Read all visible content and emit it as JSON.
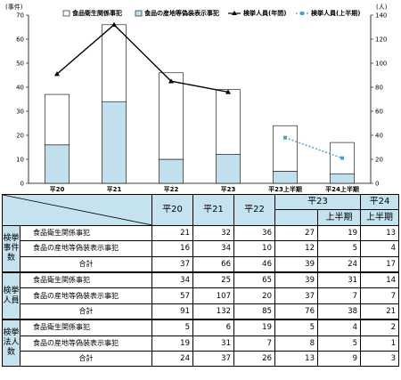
{
  "chart_data": {
    "type": "bar",
    "left_axis_unit": "(事件)",
    "right_axis_unit": "(人)",
    "y_left_ticks": [
      "0",
      "10",
      "20",
      "30",
      "40",
      "50",
      "60",
      "70"
    ],
    "y_right_ticks": [
      "0",
      "20",
      "40",
      "60",
      "80",
      "100",
      "120",
      "140"
    ],
    "ylim_left": [
      0,
      70
    ],
    "ylim_right": [
      0,
      140
    ],
    "categories": [
      "平20",
      "平21",
      "平22",
      "平23",
      "平23上半期",
      "平24上半期"
    ],
    "series": [
      {
        "name": "食品衛生関係事犯",
        "kind": "bar-stack-top",
        "color": "#ffffff",
        "values": [
          21,
          32,
          36,
          27,
          19,
          13
        ]
      },
      {
        "name": "食品の産地等偽装表示事犯",
        "kind": "bar-stack-bottom",
        "color": "#bfe0ec",
        "values": [
          16,
          34,
          10,
          12,
          5,
          4
        ]
      },
      {
        "name": "検挙人員(年間)",
        "kind": "line",
        "axis": "right",
        "color": "#000000",
        "values": [
          91,
          132,
          85,
          76,
          null,
          null
        ]
      },
      {
        "name": "検挙人員(上半期)",
        "kind": "line-dashed",
        "axis": "right",
        "color": "#4aa3c8",
        "values": [
          null,
          null,
          null,
          null,
          38,
          21
        ]
      }
    ],
    "legend_position": "top"
  },
  "table": {
    "headers": {
      "h20": "平20",
      "h21": "平21",
      "h22": "平22",
      "h23": "平23",
      "h23h": "上半期",
      "h24": "平24",
      "h24h": "上半期"
    },
    "groups": [
      {
        "label": "検挙事件数",
        "rows": [
          {
            "label": "食品衛生関係事犯",
            "values": [
              "21",
              "32",
              "36",
              "27",
              "19",
              "13"
            ]
          },
          {
            "label": "食品の産地等偽装表示事犯",
            "values": [
              "16",
              "34",
              "10",
              "12",
              "5",
              "4"
            ]
          },
          {
            "label": "合計",
            "values": [
              "37",
              "66",
              "46",
              "39",
              "24",
              "17"
            ]
          }
        ]
      },
      {
        "label": "検挙人員",
        "rows": [
          {
            "label": "食品衛生関係事犯",
            "values": [
              "34",
              "25",
              "65",
              "39",
              "31",
              "14"
            ]
          },
          {
            "label": "食品の産地等偽装表示事犯",
            "values": [
              "57",
              "107",
              "20",
              "37",
              "7",
              "7"
            ]
          },
          {
            "label": "合計",
            "values": [
              "91",
              "132",
              "85",
              "76",
              "38",
              "21"
            ]
          }
        ]
      },
      {
        "label": "検挙法人数",
        "rows": [
          {
            "label": "食品衛生関係事犯",
            "values": [
              "5",
              "6",
              "19",
              "5",
              "4",
              "2"
            ]
          },
          {
            "label": "食品の産地等偽装表示事犯",
            "values": [
              "19",
              "31",
              "7",
              "8",
              "5",
              "1"
            ]
          },
          {
            "label": "合計",
            "values": [
              "24",
              "37",
              "26",
              "13",
              "9",
              "3"
            ]
          }
        ]
      }
    ]
  }
}
